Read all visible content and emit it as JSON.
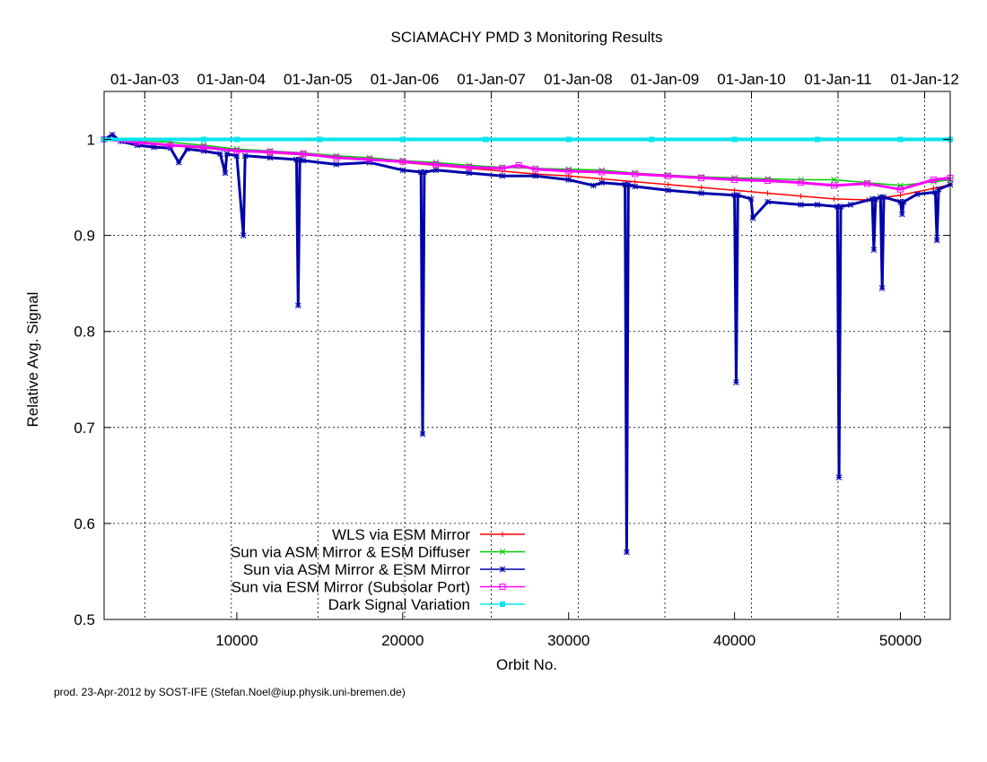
{
  "chart_data": {
    "type": "line",
    "title": "SCIAMACHY PMD 3 Monitoring Results",
    "xlabel": "Orbit No.",
    "ylabel": "Relative Avg. Signal",
    "xlim": [
      2000,
      53000
    ],
    "ylim": [
      0.5,
      1.05
    ],
    "x_ticks": [
      10000,
      20000,
      30000,
      40000,
      50000
    ],
    "x_tick_labels": [
      "10000",
      "20000",
      "30000",
      "40000",
      "50000"
    ],
    "y_ticks": [
      0.5,
      0.6,
      0.7,
      0.8,
      0.9,
      1.0
    ],
    "y_tick_labels": [
      "0.5",
      "0.6",
      "0.7",
      "0.8",
      "0.9",
      "1"
    ],
    "top_axis": {
      "label_orbits": [
        4450,
        9670,
        14890,
        20120,
        25340,
        30580,
        35800,
        41020,
        46240,
        51460
      ],
      "labels": [
        "01-Jan-03",
        "01-Jan-04",
        "01-Jan-05",
        "01-Jan-06",
        "01-Jan-07",
        "01-Jan-08",
        "01-Jan-09",
        "01-Jan-10",
        "01-Jan-11",
        "01-Jan-12"
      ]
    },
    "grid": true,
    "legend_position": "bottom-left",
    "series": [
      {
        "name": "WLS via ESM Mirror",
        "color": "#ff0000",
        "marker": "plus",
        "x": [
          2000,
          4000,
          6000,
          8000,
          10000,
          12000,
          14000,
          16000,
          18000,
          20000,
          22000,
          24000,
          26000,
          28000,
          30000,
          32000,
          34000,
          36000,
          38000,
          40000,
          42000,
          44000,
          46000,
          48000,
          50000,
          52000,
          53000
        ],
        "y": [
          1.0,
          0.997,
          0.994,
          0.991,
          0.988,
          0.986,
          0.984,
          0.982,
          0.979,
          0.976,
          0.973,
          0.97,
          0.967,
          0.964,
          0.962,
          0.959,
          0.956,
          0.953,
          0.95,
          0.947,
          0.944,
          0.941,
          0.938,
          0.937,
          0.942,
          0.949,
          0.953
        ]
      },
      {
        "name": "Sun via ASM Mirror & ESM Diffuser",
        "color": "#00cc00",
        "marker": "cross",
        "x": [
          2000,
          4000,
          6000,
          8000,
          10000,
          12000,
          14000,
          16000,
          18000,
          20000,
          22000,
          24000,
          26000,
          28000,
          30000,
          32000,
          34000,
          36000,
          38000,
          40000,
          42000,
          44000,
          46000,
          48000,
          50000,
          52000,
          53000
        ],
        "y": [
          1.0,
          0.999,
          0.997,
          0.994,
          0.99,
          0.988,
          0.986,
          0.983,
          0.981,
          0.978,
          0.976,
          0.973,
          0.971,
          0.97,
          0.969,
          0.968,
          0.965,
          0.963,
          0.961,
          0.96,
          0.959,
          0.958,
          0.958,
          0.955,
          0.952,
          0.956,
          0.958
        ]
      },
      {
        "name": "Sun via ASM Mirror & ESM Mirror",
        "color": "#0000aa",
        "marker": "star",
        "x": [
          2000,
          2500,
          3000,
          4000,
          5000,
          6000,
          6500,
          7000,
          8000,
          9000,
          9300,
          9400,
          10000,
          10400,
          10500,
          12000,
          13600,
          13700,
          13800,
          14000,
          16000,
          18000,
          20000,
          21100,
          21200,
          21300,
          22000,
          24000,
          26000,
          28000,
          30000,
          31500,
          32000,
          33400,
          33500,
          33600,
          34000,
          36000,
          38000,
          40000,
          40100,
          40200,
          41000,
          41100,
          42000,
          44000,
          45000,
          46200,
          46300,
          46400,
          47000,
          48300,
          48400,
          48500,
          48800,
          48900,
          49000,
          50000,
          50100,
          50200,
          51000,
          52100,
          52200,
          52300,
          53000
        ],
        "y": [
          1.0,
          1.005,
          0.998,
          0.994,
          0.992,
          0.991,
          0.976,
          0.99,
          0.988,
          0.985,
          0.965,
          0.985,
          0.983,
          0.9,
          0.983,
          0.981,
          0.979,
          0.827,
          0.979,
          0.978,
          0.974,
          0.976,
          0.968,
          0.966,
          0.693,
          0.966,
          0.968,
          0.965,
          0.962,
          0.962,
          0.958,
          0.952,
          0.955,
          0.953,
          0.57,
          0.953,
          0.951,
          0.947,
          0.944,
          0.942,
          0.747,
          0.942,
          0.938,
          0.918,
          0.935,
          0.932,
          0.932,
          0.93,
          0.648,
          0.93,
          0.932,
          0.938,
          0.885,
          0.938,
          0.94,
          0.845,
          0.94,
          0.935,
          0.922,
          0.935,
          0.943,
          0.945,
          0.895,
          0.948,
          0.953
        ]
      },
      {
        "name": "Sun via ESM Mirror (Subsolar Port)",
        "color": "#ff00ff",
        "marker": "square",
        "x": [
          2000,
          4000,
          6000,
          8000,
          10000,
          12000,
          14000,
          16000,
          18000,
          20000,
          22000,
          24000,
          26000,
          27000,
          28000,
          30000,
          32000,
          34000,
          36000,
          38000,
          40000,
          42000,
          44000,
          46000,
          48000,
          50000,
          52000,
          53000
        ],
        "y": [
          1.0,
          0.997,
          0.994,
          0.992,
          0.988,
          0.987,
          0.985,
          0.981,
          0.979,
          0.977,
          0.974,
          0.971,
          0.97,
          0.973,
          0.969,
          0.967,
          0.966,
          0.964,
          0.962,
          0.96,
          0.958,
          0.957,
          0.955,
          0.952,
          0.954,
          0.948,
          0.958,
          0.96
        ]
      },
      {
        "name": "Dark Signal Variation",
        "color": "#00e5ee",
        "marker": "filled-square",
        "x": [
          2000,
          8000,
          10000,
          15000,
          20000,
          25000,
          30000,
          35000,
          40000,
          45000,
          50000,
          53000
        ],
        "y": [
          1.0,
          1.0,
          1.0,
          1.0,
          1.0,
          1.0,
          1.0,
          1.0,
          1.0,
          1.0,
          1.0,
          1.0
        ]
      }
    ]
  },
  "footer": "prod. 23-Apr-2012 by SOST-IFE (Stefan.Noel@iup.physik.uni-bremen.de)"
}
